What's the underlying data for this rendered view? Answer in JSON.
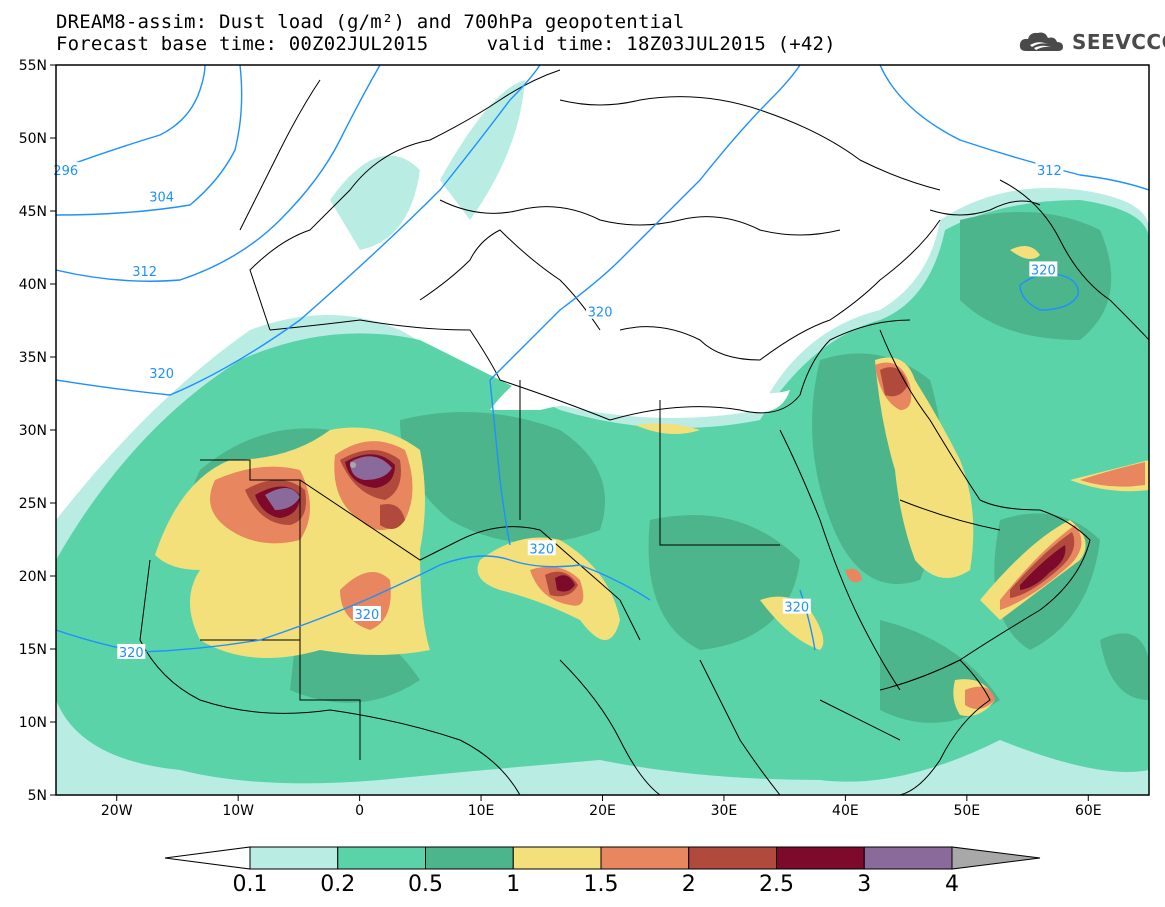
{
  "header": {
    "title_line1": "DREAM8-assim: Dust load (g/m²) and 700hPa geopotential",
    "title_line2": "Forecast base time: 00Z02JUL2015     valid time: 18Z03JUL2015 (+42)",
    "logo_text": "SEEVCCC"
  },
  "map": {
    "lat_range": [
      5,
      55
    ],
    "lon_range": [
      -25,
      65
    ],
    "lat_ticks": [
      {
        "value": 55,
        "label": "55N"
      },
      {
        "value": 50,
        "label": "50N"
      },
      {
        "value": 45,
        "label": "45N"
      },
      {
        "value": 40,
        "label": "40N"
      },
      {
        "value": 35,
        "label": "35N"
      },
      {
        "value": 30,
        "label": "30N"
      },
      {
        "value": 25,
        "label": "25N"
      },
      {
        "value": 20,
        "label": "20N"
      },
      {
        "value": 15,
        "label": "15N"
      },
      {
        "value": 10,
        "label": "10N"
      },
      {
        "value": 5,
        "label": "5N"
      }
    ],
    "lon_ticks": [
      {
        "value": -20,
        "label": "20W"
      },
      {
        "value": -10,
        "label": "10W"
      },
      {
        "value": 0,
        "label": "0"
      },
      {
        "value": 10,
        "label": "10E"
      },
      {
        "value": 20,
        "label": "20E"
      },
      {
        "value": 30,
        "label": "30E"
      },
      {
        "value": 40,
        "label": "40E"
      },
      {
        "value": 50,
        "label": "50E"
      },
      {
        "value": 60,
        "label": "60E"
      }
    ],
    "contour_labels": [
      {
        "text": "296",
        "lon": -24.2,
        "lat": 47.8
      },
      {
        "text": "304",
        "lon": -16.3,
        "lat": 46.0
      },
      {
        "text": "312",
        "lon": -17.7,
        "lat": 40.9
      },
      {
        "text": "320",
        "lon": -16.3,
        "lat": 33.9
      },
      {
        "text": "320",
        "lon": 19.8,
        "lat": 38.1
      },
      {
        "text": "312",
        "lon": 56.8,
        "lat": 47.8
      },
      {
        "text": "320",
        "lon": 56.3,
        "lat": 41.0
      },
      {
        "text": "320",
        "lon": 15.0,
        "lat": 21.9
      },
      {
        "text": "320",
        "lon": 0.6,
        "lat": 17.4
      },
      {
        "text": "320",
        "lon": -18.8,
        "lat": 14.8
      },
      {
        "text": "320",
        "lon": 36.0,
        "lat": 17.9
      }
    ],
    "contour_color": "#1e90ff"
  },
  "colorbar": {
    "levels": [
      "0.1",
      "0.2",
      "0.5",
      "1",
      "1.5",
      "2",
      "2.5",
      "3",
      "4"
    ],
    "colors": [
      "#ffffff",
      "#b9ede4",
      "#5bd3a9",
      "#4cb58b",
      "#f3e07a",
      "#e8865f",
      "#b04a3c",
      "#7d0a2b",
      "#8a6a9b",
      "#a8a8a8"
    ]
  }
}
